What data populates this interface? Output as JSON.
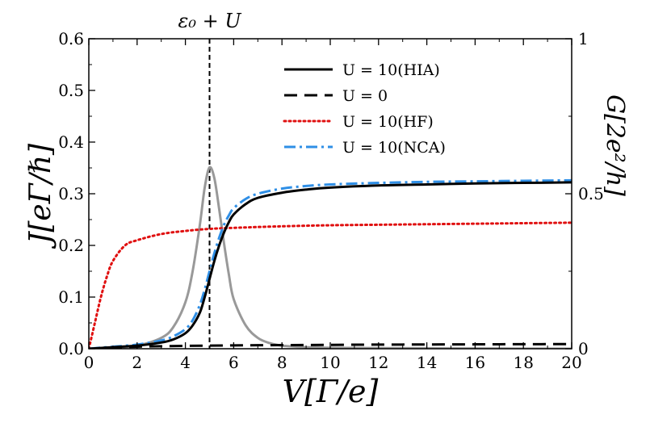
{
  "chart_data": {
    "type": "line",
    "title": "",
    "xlabel": "V[Γ/e]",
    "ylabel_left": "J[eΓ/ℏ]",
    "ylabel_right": "G[2e²/h]",
    "xlim": [
      0,
      20
    ],
    "ylim_left": [
      0,
      0.6
    ],
    "ylim_right": [
      0,
      1
    ],
    "x_ticks": [
      "0",
      "2",
      "4",
      "6",
      "8",
      "10",
      "12",
      "14",
      "16",
      "18",
      "20"
    ],
    "y_ticks_left": [
      "0.0",
      "0.1",
      "0.2",
      "0.3",
      "0.4",
      "0.5",
      "0.6"
    ],
    "y_ticks_right": [
      "0",
      "0.5",
      "1"
    ],
    "grid": false,
    "legend_position": "top-right",
    "annotation": {
      "text": "ε₀ + U",
      "x": 5
    },
    "series": [
      {
        "name": "U = 10(HIA)",
        "color": "#000000",
        "style": "solid",
        "axis": "left",
        "x": [
          0,
          1,
          2,
          3,
          3.5,
          4,
          4.3,
          4.6,
          4.8,
          5,
          5.2,
          5.4,
          5.6,
          5.8,
          6,
          6.5,
          7,
          8,
          9,
          10,
          12,
          14,
          16,
          18,
          20
        ],
        "y": [
          0.0,
          0.003,
          0.006,
          0.012,
          0.018,
          0.03,
          0.045,
          0.07,
          0.1,
          0.135,
          0.17,
          0.2,
          0.225,
          0.245,
          0.26,
          0.28,
          0.292,
          0.302,
          0.308,
          0.312,
          0.316,
          0.318,
          0.32,
          0.321,
          0.322
        ]
      },
      {
        "name": "U = 0",
        "color": "#000000",
        "style": "dashed",
        "axis": "left",
        "x": [
          0,
          2,
          4,
          6,
          8,
          10,
          12,
          14,
          16,
          18,
          20
        ],
        "y": [
          0.0,
          0.004,
          0.0055,
          0.0065,
          0.007,
          0.0075,
          0.008,
          0.0082,
          0.0085,
          0.0088,
          0.009
        ]
      },
      {
        "name": "U = 10(HF)",
        "color": "#e01010",
        "style": "dotted",
        "axis": "left",
        "x": [
          0,
          0.25,
          0.5,
          0.75,
          1,
          1.5,
          2,
          3,
          4,
          5,
          6,
          8,
          10,
          12,
          14,
          16,
          18,
          20
        ],
        "y": [
          0.0,
          0.05,
          0.1,
          0.14,
          0.17,
          0.2,
          0.21,
          0.222,
          0.228,
          0.232,
          0.234,
          0.237,
          0.239,
          0.24,
          0.241,
          0.242,
          0.243,
          0.244
        ]
      },
      {
        "name": "U = 10(NCA)",
        "color": "#2f8fe6",
        "style": "dashdot",
        "axis": "left",
        "x": [
          0,
          1,
          2,
          3,
          3.5,
          4,
          4.3,
          4.6,
          4.8,
          5,
          5.2,
          5.4,
          5.6,
          5.8,
          6,
          6.5,
          7,
          8,
          9,
          10,
          12,
          14,
          16,
          18,
          20
        ],
        "y": [
          0.0,
          0.004,
          0.008,
          0.016,
          0.024,
          0.038,
          0.055,
          0.085,
          0.115,
          0.15,
          0.185,
          0.215,
          0.24,
          0.258,
          0.272,
          0.29,
          0.3,
          0.31,
          0.315,
          0.318,
          0.321,
          0.323,
          0.324,
          0.325,
          0.326
        ]
      },
      {
        "name": "",
        "color": "#999999",
        "style": "solid",
        "axis": "right",
        "x": [
          0,
          1,
          2,
          3,
          3.5,
          4,
          4.3,
          4.6,
          4.8,
          5,
          5.2,
          5.4,
          5.6,
          5.8,
          6,
          6.5,
          7,
          7.5,
          8,
          9,
          10,
          12,
          15,
          20
        ],
        "y": [
          0.0,
          0.003,
          0.01,
          0.035,
          0.07,
          0.15,
          0.25,
          0.4,
          0.52,
          0.585,
          0.55,
          0.45,
          0.34,
          0.24,
          0.16,
          0.075,
          0.035,
          0.018,
          0.01,
          0.005,
          0.003,
          0.002,
          0.001,
          0.0
        ]
      }
    ]
  }
}
